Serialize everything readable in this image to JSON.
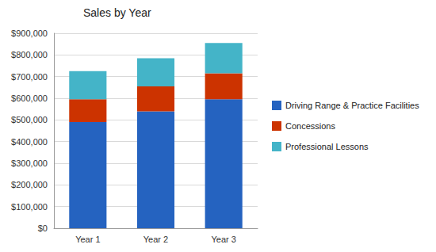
{
  "chart_data": {
    "type": "bar",
    "title": "Sales by Year",
    "stacked": true,
    "grid": true,
    "legend": "right",
    "categories": [
      "Year 1",
      "Year 2",
      "Year 3"
    ],
    "series": [
      {
        "name": "Driving Range & Practice Facilities",
        "color": "#2563c0",
        "values": [
          490000,
          540000,
          595000
        ]
      },
      {
        "name": "Concessions",
        "color": "#cc3300",
        "values": [
          105000,
          115000,
          120000
        ]
      },
      {
        "name": "Professional Lessons",
        "color": "#44b4c8",
        "values": [
          130000,
          130000,
          140000
        ]
      }
    ],
    "ylim": [
      0,
      900000
    ],
    "yticks": [
      {
        "value": 0,
        "label": "$0"
      },
      {
        "value": 100000,
        "label": "$100,000"
      },
      {
        "value": 200000,
        "label": "$200,000"
      },
      {
        "value": 300000,
        "label": "$300,000"
      },
      {
        "value": 400000,
        "label": "$400,000"
      },
      {
        "value": 500000,
        "label": "$500,000"
      },
      {
        "value": 600000,
        "label": "$600,000"
      },
      {
        "value": 700000,
        "label": "$700,000"
      },
      {
        "value": 800000,
        "label": "$800,000"
      },
      {
        "value": 900000,
        "label": "$900,000"
      }
    ]
  }
}
